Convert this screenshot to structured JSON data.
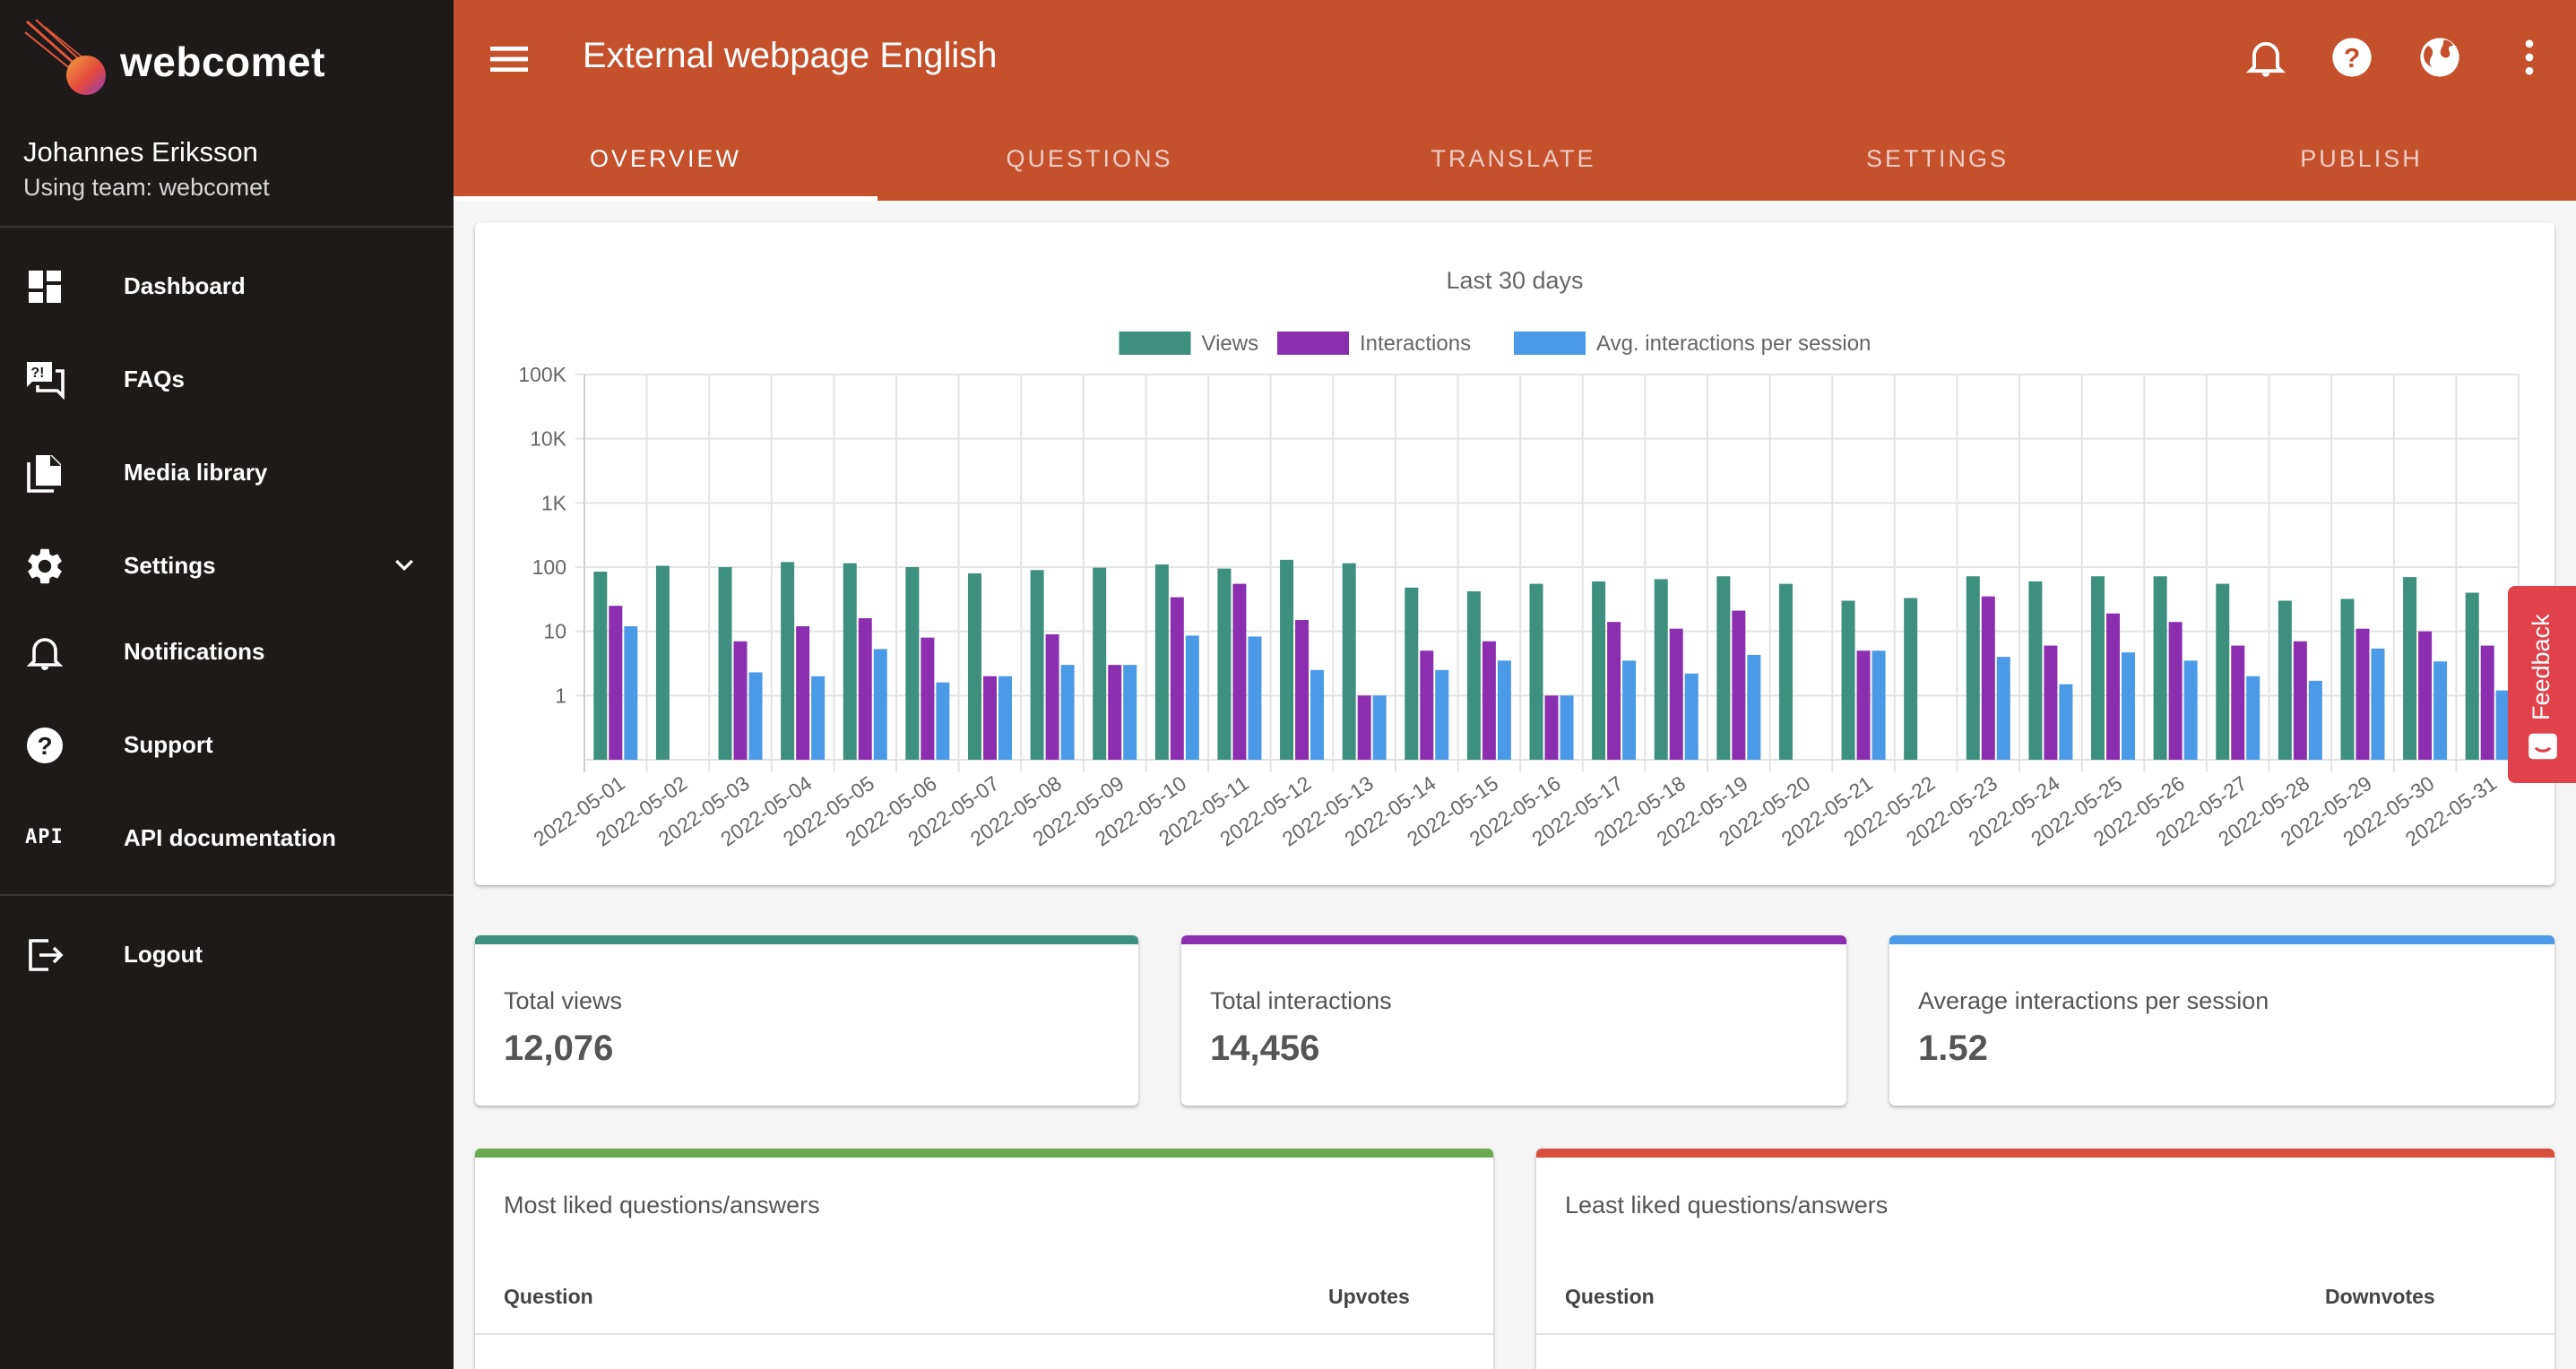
{
  "app": {
    "brand": "webcomet",
    "user_name": "Johannes Eriksson",
    "user_team": "Using team: webcomet"
  },
  "sidebar": {
    "items": [
      {
        "label": "Dashboard",
        "icon": "dashboard-icon"
      },
      {
        "label": "FAQs",
        "icon": "faq-icon"
      },
      {
        "label": "Media library",
        "icon": "file-icon"
      },
      {
        "label": "Settings",
        "icon": "gear-icon"
      },
      {
        "label": "Notifications",
        "icon": "bell-icon"
      },
      {
        "label": "Support",
        "icon": "help-icon"
      },
      {
        "label": "API documentation",
        "icon": "api-icon",
        "icon_text": "API"
      },
      {
        "label": "Logout",
        "icon": "logout-icon"
      }
    ]
  },
  "header": {
    "title": "External webpage English",
    "tabs": [
      "OVERVIEW",
      "QUESTIONS",
      "TRANSLATE",
      "SETTINGS",
      "PUBLISH"
    ],
    "active_tab": 0
  },
  "colors": {
    "header": "#c4502c",
    "sidebar": "#1f1a1a",
    "views": "#3d8f7e",
    "interactions": "#8b2fb0",
    "avg": "#4a9ae8",
    "liked": "#6aab52",
    "disliked": "#d9503f",
    "feedback": "#e0414b"
  },
  "chart_data": {
    "type": "bar",
    "title": "Last 30 days",
    "yscale": "log",
    "ylim": [
      0.1,
      100000
    ],
    "yticks": [
      "100K",
      "10K",
      "1K",
      "100",
      "10",
      "1"
    ],
    "grid": true,
    "legend_position": "top",
    "categories": [
      "2022-05-01",
      "2022-05-02",
      "2022-05-03",
      "2022-05-04",
      "2022-05-05",
      "2022-05-06",
      "2022-05-07",
      "2022-05-08",
      "2022-05-09",
      "2022-05-10",
      "2022-05-11",
      "2022-05-12",
      "2022-05-13",
      "2022-05-14",
      "2022-05-15",
      "2022-05-16",
      "2022-05-17",
      "2022-05-18",
      "2022-05-19",
      "2022-05-20",
      "2022-05-21",
      "2022-05-22",
      "2022-05-23",
      "2022-05-24",
      "2022-05-25",
      "2022-05-26",
      "2022-05-27",
      "2022-05-28",
      "2022-05-29",
      "2022-05-30",
      "2022-05-31"
    ],
    "series": [
      {
        "name": "Views",
        "values": [
          85,
          105,
          100,
          120,
          115,
          100,
          80,
          90,
          98,
          110,
          95,
          130,
          115,
          48,
          42,
          55,
          60,
          65,
          72,
          55,
          30,
          33,
          72,
          60,
          72,
          72,
          55,
          30,
          32,
          70,
          40
        ]
      },
      {
        "name": "Interactions",
        "values": [
          25,
          0,
          7,
          12,
          16,
          8,
          2,
          9,
          3,
          34,
          55,
          15,
          1,
          5,
          7,
          1,
          14,
          11,
          21,
          0,
          5,
          0,
          35,
          6,
          19,
          14,
          6,
          7,
          11,
          10,
          6
        ]
      },
      {
        "name": "Avg. interactions per session",
        "values": [
          12,
          0,
          2.3,
          2,
          5.3,
          1.6,
          2,
          3,
          3,
          8.6,
          8.3,
          2.5,
          1,
          2.5,
          3.5,
          1,
          3.5,
          2.2,
          4.3,
          0,
          5,
          0,
          4,
          1.5,
          4.7,
          3.5,
          2,
          1.7,
          5.4,
          3.4,
          1.2
        ]
      }
    ]
  },
  "stats": {
    "views": {
      "label": "Total views",
      "value": "12,076"
    },
    "interactions": {
      "label": "Total interactions",
      "value": "14,456"
    },
    "avg": {
      "label": "Average interactions per session",
      "value": "1.52"
    }
  },
  "tables": {
    "liked": {
      "title": "Most liked questions/answers",
      "col_question": "Question",
      "col_votes": "Upvotes"
    },
    "disliked": {
      "title": "Least liked questions/answers",
      "col_question": "Question",
      "col_votes": "Downvotes"
    }
  },
  "feedback": {
    "label": "Feedback"
  }
}
